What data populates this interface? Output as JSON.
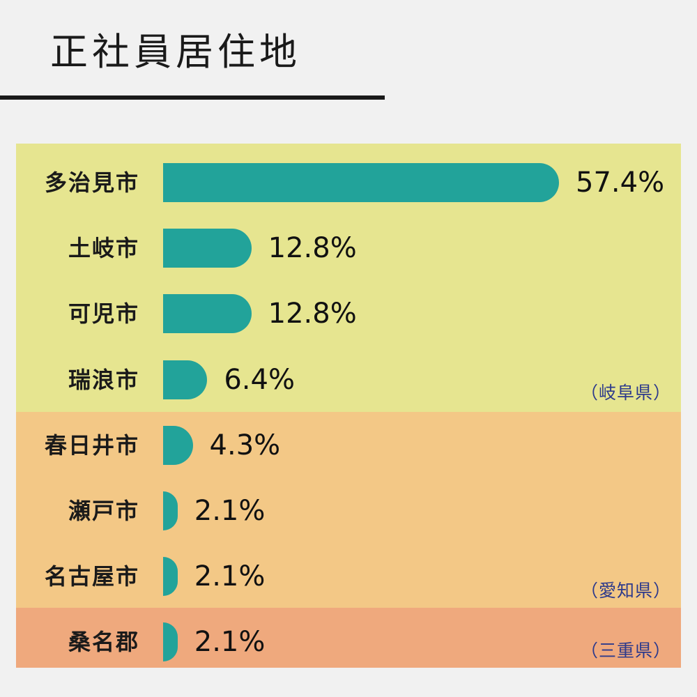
{
  "title": "正社員居住地",
  "regions": [
    {
      "label": "（岐阜県）",
      "color": "#e6e590"
    },
    {
      "label": "（愛知県）",
      "color": "#f3c886"
    },
    {
      "label": "（三重県）",
      "color": "#efa97d"
    }
  ],
  "chart_data": {
    "type": "bar",
    "orientation": "horizontal",
    "title": "正社員居住地",
    "unit": "%",
    "categories": [
      "多治見市",
      "土岐市",
      "可児市",
      "瑞浪市",
      "春日井市",
      "瀬戸市",
      "名古屋市",
      "桑名郡"
    ],
    "values": [
      57.4,
      12.8,
      12.8,
      6.4,
      4.3,
      2.1,
      2.1,
      2.1
    ],
    "value_labels": [
      "57.4%",
      "12.8%",
      "12.8%",
      "6.4%",
      "4.3%",
      "2.1%",
      "2.1%",
      "2.1%"
    ],
    "groups": [
      "（岐阜県）",
      "（岐阜県）",
      "（岐阜県）",
      "（岐阜県）",
      "（愛知県）",
      "（愛知県）",
      "（愛知県）",
      "（三重県）"
    ],
    "bar_color": "#22a39a",
    "xlim": [
      0,
      57.4
    ]
  }
}
